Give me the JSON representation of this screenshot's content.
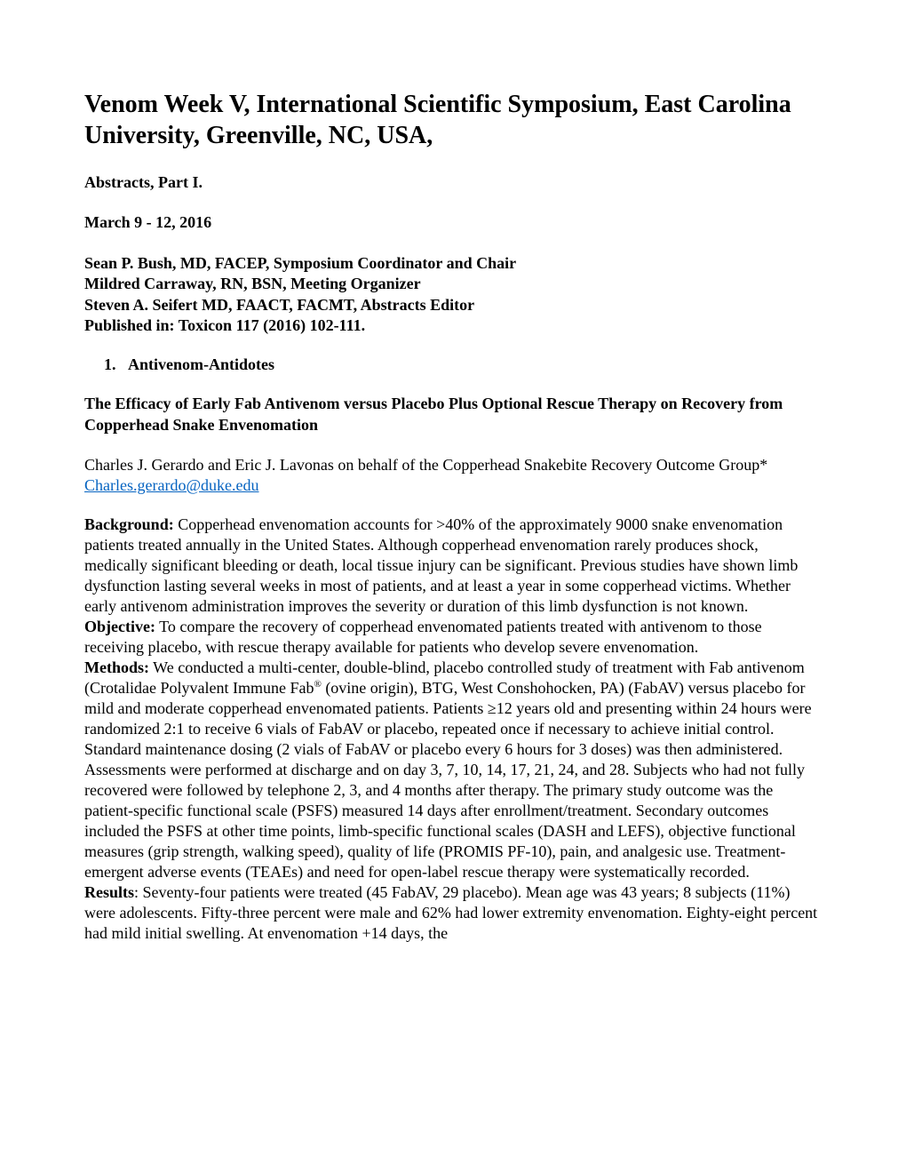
{
  "title": "Venom Week V, International Scientific Symposium, East Carolina University, Greenville, NC, USA,",
  "subtitle": "Abstracts, Part I.",
  "dates": "March 9 - 12, 2016",
  "organizers": {
    "line1": "Sean P. Bush, MD, FACEP, Symposium Coordinator and Chair",
    "line2": "Mildred Carraway, RN, BSN, Meeting Organizer",
    "line3": "Steven A. Seifert MD, FAACT, FACMT, Abstracts Editor",
    "line4": "Published in: Toxicon 117 (2016) 102-111."
  },
  "section": {
    "number": "1.",
    "title": "Antivenom-Antidotes"
  },
  "abstract": {
    "title": "The Efficacy of Early Fab Antivenom versus Placebo Plus Optional Rescue Therapy on Recovery from Copperhead Snake Envenomation",
    "authors": "Charles J. Gerardo and Eric J. Lavonas on behalf of the Copperhead Snakebite Recovery Outcome Group*",
    "email": "Charles.gerardo@duke.edu",
    "background_label": "Background:",
    "background_text": " Copperhead envenomation accounts for >40% of the approximately 9000 snake envenomation patients treated annually in the United States. Although copperhead envenomation rarely produces shock, medically significant bleeding or death, local tissue injury can be significant. Previous studies have shown limb dysfunction lasting several weeks in most of patients, and at least a year in some copperhead victims. Whether early antivenom administration improves the severity or duration of this limb dysfunction is not known.",
    "objective_label": "Objective:",
    "objective_text": " To compare the recovery of copperhead envenomated patients treated with antivenom to those receiving placebo, with rescue therapy available for patients who develop severe envenomation.",
    "methods_label": "Methods:",
    "methods_text_pre": "  We conducted a multi-center, double-blind, placebo controlled study of treatment with Fab antivenom (Crotalidae Polyvalent Immune Fab",
    "methods_sup": "®",
    "methods_text_post": " (ovine origin), BTG, West Conshohocken, PA) (FabAV) versus placebo for mild and moderate copperhead envenomated patients. Patients ≥12 years old and presenting within 24 hours were randomized 2:1 to receive 6 vials of FabAV or placebo, repeated once if necessary to achieve initial control. Standard maintenance dosing (2 vials of FabAV or placebo every 6 hours for 3 doses) was then administered. Assessments were performed at discharge and on day 3, 7, 10, 14, 17, 21, 24, and 28. Subjects who had not fully recovered were followed by telephone 2, 3, and 4 months after therapy. The primary study outcome was the patient-specific functional scale (PSFS) measured 14 days after enrollment/treatment. Secondary outcomes included the PSFS at other time points, limb-specific functional scales (DASH and LEFS), objective functional measures (grip strength, walking speed), quality of life (PROMIS PF-10), pain, and analgesic use.    Treatment-emergent adverse events (TEAEs) and need for open-label rescue therapy were systematically recorded.",
    "results_label": "Results",
    "results_text": ": Seventy-four patients were treated (45 FabAV, 29 placebo). Mean age was 43 years; 8 subjects (11%) were adolescents. Fifty-three percent were male and 62% had lower extremity envenomation. Eighty-eight percent had mild initial swelling. At envenomation +14 days, the"
  }
}
